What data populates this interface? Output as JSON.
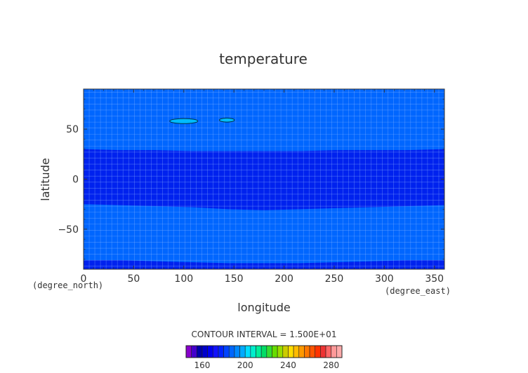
{
  "chart_data": {
    "type": "heatmap",
    "subtype": "filled-contour",
    "title": "temperature",
    "xlabel": "longitude",
    "ylabel": "latitude",
    "x_unit": "(degree_east)",
    "y_unit": "(degree_north)",
    "xlim": [
      0,
      360
    ],
    "ylim": [
      -90,
      90
    ],
    "xticks": [
      0,
      50,
      100,
      150,
      200,
      250,
      300,
      350
    ],
    "yticks": [
      50,
      0,
      -50
    ],
    "y_ticklabels": [
      "50",
      "0",
      "−50"
    ],
    "contour_interval_text": "CONTOUR INTERVAL = 1.500E+01",
    "colorbar": {
      "bins": [
        145,
        150,
        155,
        160,
        165,
        170,
        175,
        180,
        185,
        190,
        195,
        200,
        205,
        210,
        215,
        220,
        225,
        230,
        235,
        240,
        245,
        250,
        255,
        260,
        265,
        270,
        275,
        280,
        285
      ],
      "tick_values": [
        160,
        200,
        240,
        280
      ],
      "colors": [
        "#8800cc",
        "#4400cc",
        "#0000aa",
        "#0000cc",
        "#0000ee",
        "#1111ff",
        "#0022ff",
        "#0044ff",
        "#0066ff",
        "#0088ff",
        "#00aaff",
        "#00ddff",
        "#00eecc",
        "#00ee99",
        "#00dd66",
        "#33dd33",
        "#66dd00",
        "#99dd00",
        "#cccc00",
        "#ffdd00",
        "#ffbb00",
        "#ff9900",
        "#ff7700",
        "#ff5500",
        "#ff3300",
        "#ee3333",
        "#ff6666",
        "#ff9999",
        "#ffaaaa"
      ]
    },
    "regions": [
      {
        "name": "background",
        "value_range": [
          180,
          195
        ],
        "color": "#0066ff"
      },
      {
        "name": "tropical-band",
        "value_range": [
          165,
          180
        ],
        "color": "#0022ee",
        "lat_north": [
          30,
          29,
          29,
          28,
          28,
          28,
          28,
          29,
          29,
          29,
          30
        ],
        "lat_south": [
          -25,
          -26,
          -27,
          -28,
          -30,
          -31,
          -30,
          -29,
          -28,
          -27,
          -26
        ],
        "lon_samples": [
          0,
          36,
          72,
          108,
          144,
          180,
          216,
          252,
          288,
          324,
          360
        ]
      },
      {
        "name": "south-polar-band",
        "value_range": [
          165,
          180
        ],
        "lat_top": [
          -81,
          -81,
          -82,
          -83,
          -84,
          -84,
          -84,
          -83,
          -82,
          -81,
          -81
        ],
        "lon_samples": [
          0,
          36,
          72,
          108,
          144,
          180,
          216,
          252,
          288,
          324,
          360
        ]
      }
    ],
    "contours": [
      {
        "name": "warm-patch-1",
        "value_range": [
          195,
          210
        ],
        "color": "#00bbff",
        "lon_center": 100,
        "lat_center": 58,
        "lon_half_width": 14,
        "lat_half_height": 2.5
      },
      {
        "name": "warm-patch-2",
        "value_range": [
          195,
          210
        ],
        "color": "#00bbff",
        "lon_center": 143,
        "lat_center": 59,
        "lon_half_width": 7.5,
        "lat_half_height": 2
      }
    ],
    "grid": true
  }
}
